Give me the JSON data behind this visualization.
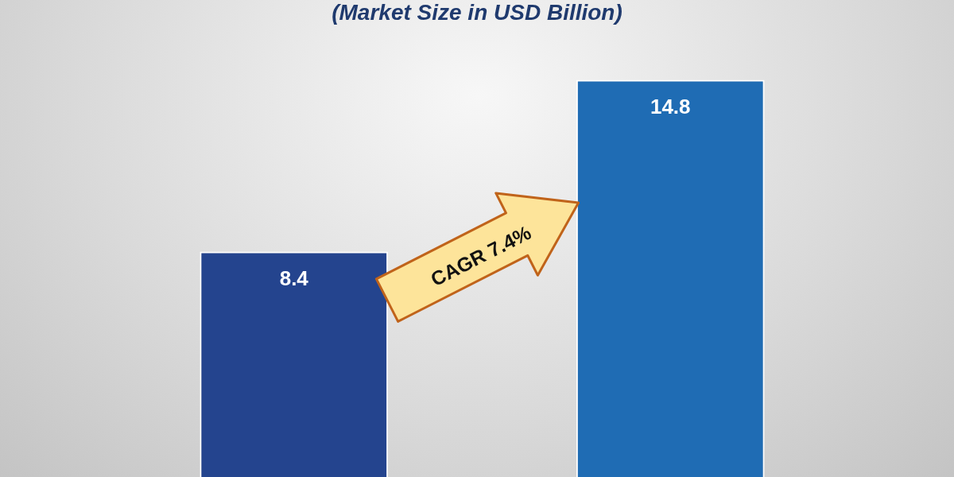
{
  "chart_data": {
    "type": "bar",
    "title": "(Market Size in USD Billion)",
    "categories": [
      null,
      null
    ],
    "values": [
      8.4,
      14.8
    ],
    "colors": [
      "#24448e",
      "#1f6cb4"
    ],
    "data_labels": true,
    "legend": false,
    "annotations": [
      "CAGR 7.4%"
    ]
  }
}
